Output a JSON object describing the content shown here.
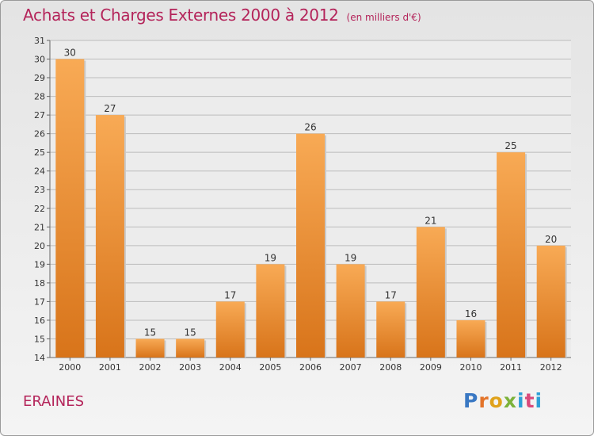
{
  "chart_data": {
    "type": "bar",
    "title": "Achats et Charges Externes 2000 à 2012",
    "unit_note": "(en milliers d'€)",
    "categories": [
      "2000",
      "2001",
      "2002",
      "2003",
      "2004",
      "2005",
      "2006",
      "2007",
      "2008",
      "2009",
      "2010",
      "2011",
      "2012"
    ],
    "values": [
      30,
      27,
      15,
      15,
      17,
      19,
      26,
      19,
      17,
      21,
      16,
      25,
      20
    ],
    "ylim": [
      14,
      31
    ],
    "yticks": [
      14,
      15,
      16,
      17,
      18,
      19,
      20,
      21,
      22,
      23,
      24,
      25,
      26,
      27,
      28,
      29,
      30,
      31
    ],
    "grid": true,
    "bar_color": "#f0922e",
    "bar_color_light": "#f8aa55",
    "bar_color_dark": "#d8741a",
    "grid_color": "#bdbdbd"
  },
  "commune": "ERAINES",
  "logo": {
    "text": "Proxiti"
  }
}
